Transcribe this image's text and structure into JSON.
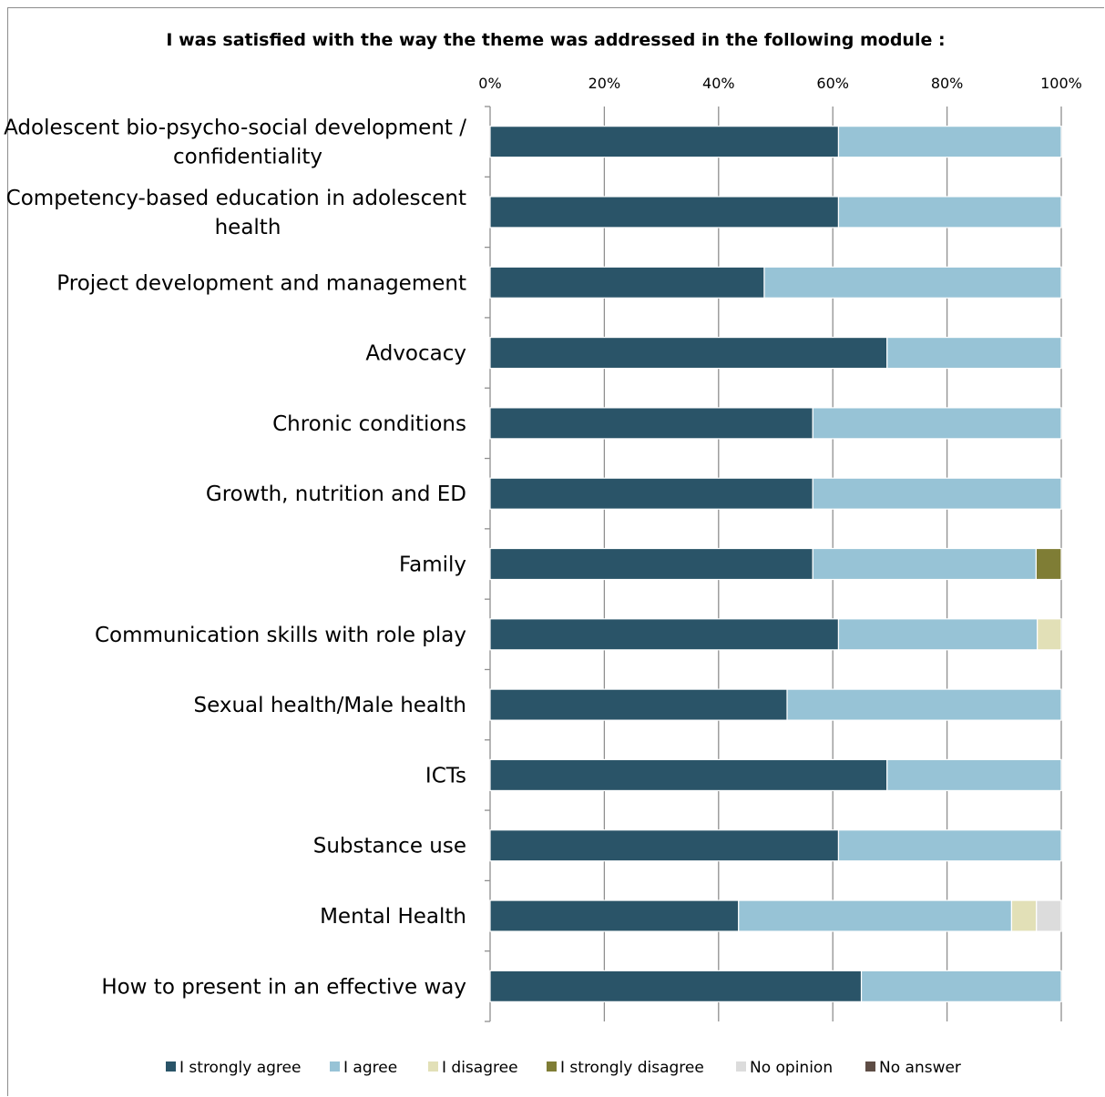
{
  "chart_data": {
    "type": "bar",
    "orientation": "horizontal",
    "stacked": "percent",
    "title": "I was satisfied with the way the theme was addressed in the following module :",
    "xlabel": "",
    "ylabel": "",
    "xlim": [
      0,
      100
    ],
    "x_ticks": [
      "0%",
      "20%",
      "40%",
      "60%",
      "80%",
      "100%"
    ],
    "grid": "vertical",
    "legend_position": "bottom",
    "categories": [
      [
        "Adolescent bio-psycho-social development /",
        "confidentiality"
      ],
      [
        "Competency-based education in adolescent",
        "health"
      ],
      [
        "Project development and management"
      ],
      [
        "Advocacy"
      ],
      [
        "Chronic conditions"
      ],
      [
        "Growth, nutrition and ED"
      ],
      [
        "Family"
      ],
      [
        "Communication skills with role play"
      ],
      [
        "Sexual health/Male health"
      ],
      [
        "ICTs"
      ],
      [
        "Substance use"
      ],
      [
        "Mental Health"
      ],
      [
        "How to present in an effective way"
      ]
    ],
    "series": [
      {
        "name": "I strongly agree",
        "color": "#2a5468",
        "values": [
          61,
          61,
          48,
          69.5,
          56.5,
          56.5,
          56.5,
          61,
          52,
          69.5,
          61,
          43.5,
          65
        ]
      },
      {
        "name": "I agree",
        "color": "#97c3d6",
        "values": [
          39,
          39,
          52,
          30.5,
          43.5,
          43.5,
          39.1,
          34.8,
          48,
          30.5,
          39,
          47.8,
          35
        ]
      },
      {
        "name": "I disagree",
        "color": "#e2e0b7",
        "values": [
          0,
          0,
          0,
          0,
          0,
          0,
          0,
          4.2,
          0,
          0,
          0,
          4.35,
          0
        ]
      },
      {
        "name": "I strongly disagree",
        "color": "#7f7d35",
        "values": [
          0,
          0,
          0,
          0,
          0,
          0,
          4.4,
          0,
          0,
          0,
          0,
          0,
          0
        ]
      },
      {
        "name": "No opinion",
        "color": "#dcdcdc",
        "values": [
          0,
          0,
          0,
          0,
          0,
          0,
          0,
          0,
          0,
          0,
          0,
          4.35,
          0
        ]
      },
      {
        "name": "No answer",
        "color": "#5e4d45",
        "values": [
          0,
          0,
          0,
          0,
          0,
          0,
          0,
          0,
          0,
          0,
          0,
          0,
          0
        ]
      }
    ]
  }
}
